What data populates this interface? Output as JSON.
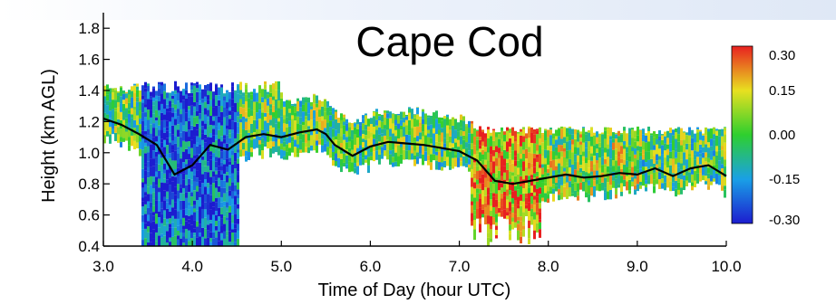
{
  "chart_data": {
    "type": "heatmap",
    "title": "Cape Cod",
    "xlabel": "Time of Day (hour UTC)",
    "ylabel": "Height (km AGL)",
    "xlim": [
      3.0,
      10.0
    ],
    "ylim": [
      0.4,
      1.9
    ],
    "x_ticks": [
      "3.0",
      "4.0",
      "5.0",
      "6.0",
      "7.0",
      "8.0",
      "9.0",
      "10.0"
    ],
    "y_ticks": [
      "0.4",
      "0.6",
      "0.8",
      "1.0",
      "1.2",
      "1.4",
      "1.6",
      "1.8"
    ],
    "colorbar": {
      "ticks": [
        "0.30",
        "0.15",
        "0.00",
        "-0.15",
        "-0.30"
      ],
      "range": [
        -0.3,
        0.3
      ],
      "colors": [
        "#1c1ccf",
        "#1aa0e6",
        "#2ecf2e",
        "#e8e020",
        "#e82020"
      ]
    },
    "series": [
      {
        "x": [
          3.0,
          3.2,
          3.4,
          3.6,
          3.8,
          4.0,
          4.2,
          4.4,
          4.6,
          4.8,
          5.0,
          5.2,
          5.4,
          5.5,
          5.6,
          5.8,
          6.0,
          6.2,
          6.4,
          6.6,
          6.8,
          7.0,
          7.2,
          7.4,
          7.6,
          7.8,
          8.0,
          8.2,
          8.4,
          8.6,
          8.8,
          9.0,
          9.2,
          9.4,
          9.6,
          9.8,
          10.0
        ],
        "y": [
          1.22,
          1.18,
          1.12,
          1.05,
          0.86,
          0.92,
          1.05,
          1.02,
          1.1,
          1.12,
          1.1,
          1.13,
          1.15,
          1.12,
          1.05,
          0.98,
          1.04,
          1.07,
          1.06,
          1.05,
          1.03,
          1.01,
          0.95,
          0.82,
          0.8,
          0.82,
          0.84,
          0.86,
          0.84,
          0.85,
          0.87,
          0.86,
          0.9,
          0.85,
          0.9,
          0.92,
          0.85
        ]
      }
    ]
  }
}
